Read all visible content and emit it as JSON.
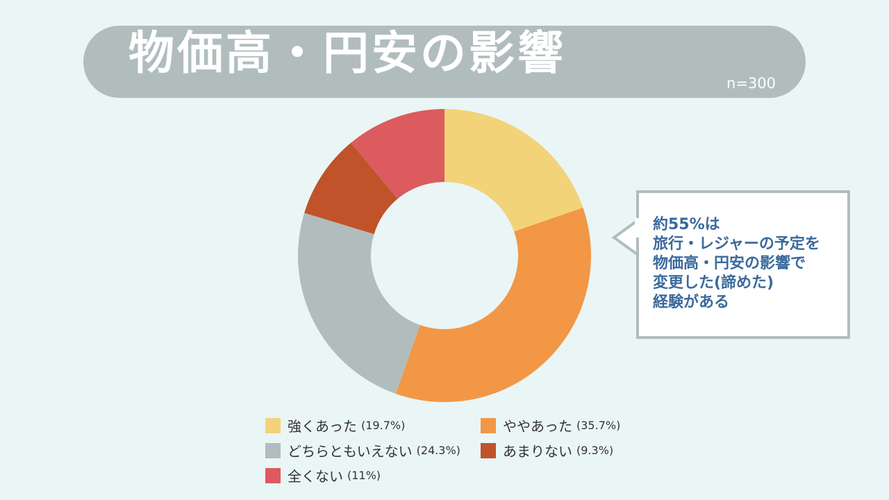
{
  "header": {
    "title": "物価高・円安の影響",
    "sample_size": "n=300"
  },
  "callout": {
    "lines": [
      "約55%は",
      "旅行・レジャーの予定を",
      "物価高・円安の影響で",
      "変更した(諦めた)",
      "経験がある"
    ]
  },
  "chart_data": {
    "type": "pie",
    "style": "donut",
    "title": "物価高・円安の影響",
    "legend_position": "bottom",
    "slices": [
      {
        "label": "強くあった",
        "value": 19.7,
        "pct_label": "(19.7%)",
        "color": "#f3d37a"
      },
      {
        "label": "ややあった",
        "value": 35.7,
        "pct_label": "(35.7%)",
        "color": "#f29745"
      },
      {
        "label": "どちらともいえない",
        "value": 24.3,
        "pct_label": "(24.3%)",
        "color": "#b1bdbd"
      },
      {
        "label": "あまりない",
        "value": 9.3,
        "pct_label": "(9.3%)",
        "color": "#c0532a"
      },
      {
        "label": "全くない",
        "value": 11,
        "pct_label": "(11%)",
        "color": "#dc5b5e"
      }
    ]
  }
}
